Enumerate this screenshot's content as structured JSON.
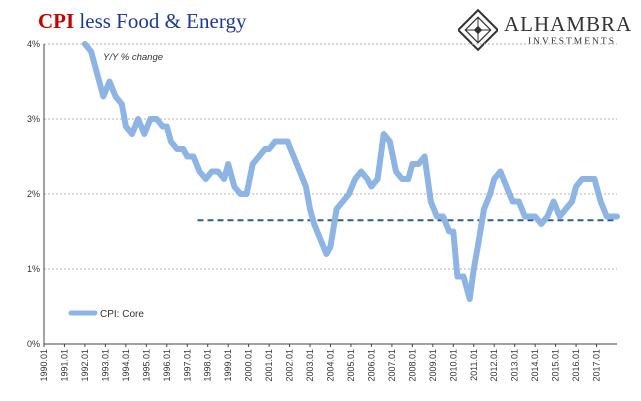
{
  "header": {
    "title_red": "CPI",
    "title_rest": " less Food & Energy",
    "logo_name": "ALHAMBRA",
    "logo_sub": "INVESTMENTS"
  },
  "chart_data": {
    "type": "line",
    "title": "CPI less Food & Energy",
    "annotation": "Y/Y % change",
    "ylim": [
      0,
      4
    ],
    "xlim": [
      1990.0,
      2018.0
    ],
    "yticks": [
      "0%",
      "1%",
      "2%",
      "3%",
      "4%"
    ],
    "xtick_labels": [
      "1990.01",
      "1991.01",
      "1992.01",
      "1993.01",
      "1994.01",
      "1995.01",
      "1996.01",
      "1997.01",
      "1998.01",
      "1999.01",
      "2000.01",
      "2001.01",
      "2002.01",
      "2003.01",
      "2004.01",
      "2005.01",
      "2006.01",
      "2007.01",
      "2008.01",
      "2009.01",
      "2010.01",
      "2011.01",
      "2012.01",
      "2013.01",
      "2014.01",
      "2015.01",
      "2016.01",
      "2017.01"
    ],
    "grid": true,
    "legend": "bottom-left",
    "colors": {
      "series": "#8eb4e3",
      "reference": "#2e5e86",
      "grid": "#b0b0b0"
    },
    "reference_line": {
      "y": 1.65,
      "x_start": 1997.5,
      "x_end": 2018.0
    },
    "series": [
      {
        "name": "CPI: Core",
        "x": [
          1992.0,
          1992.3,
          1992.6,
          1992.9,
          1993.2,
          1993.5,
          1993.8,
          1994.0,
          1994.3,
          1994.6,
          1994.9,
          1995.2,
          1995.5,
          1995.8,
          1996.0,
          1996.2,
          1996.5,
          1996.8,
          1997.0,
          1997.3,
          1997.6,
          1997.9,
          1998.2,
          1998.5,
          1998.8,
          1999.0,
          1999.3,
          1999.6,
          1999.9,
          2000.2,
          2000.5,
          2000.8,
          2001.0,
          2001.3,
          2001.6,
          2001.9,
          2002.2,
          2002.5,
          2002.8,
          2003.0,
          2003.2,
          2003.5,
          2003.8,
          2004.0,
          2004.3,
          2004.6,
          2004.9,
          2005.2,
          2005.5,
          2005.8,
          2006.0,
          2006.3,
          2006.6,
          2006.9,
          2007.2,
          2007.5,
          2007.8,
          2008.0,
          2008.3,
          2008.6,
          2008.9,
          2009.2,
          2009.5,
          2009.8,
          2010.0,
          2010.2,
          2010.5,
          2010.8,
          2011.0,
          2011.2,
          2011.5,
          2011.8,
          2012.0,
          2012.3,
          2012.6,
          2012.9,
          2013.2,
          2013.5,
          2013.8,
          2014.0,
          2014.3,
          2014.6,
          2014.9,
          2015.2,
          2015.5,
          2015.8,
          2016.0,
          2016.3,
          2016.6,
          2016.9,
          2017.2,
          2017.5,
          2017.8,
          2018.0
        ],
        "values": [
          4.0,
          3.9,
          3.6,
          3.3,
          3.5,
          3.3,
          3.2,
          2.9,
          2.8,
          3.0,
          2.8,
          3.0,
          3.0,
          2.9,
          2.9,
          2.7,
          2.6,
          2.6,
          2.5,
          2.5,
          2.3,
          2.2,
          2.3,
          2.3,
          2.2,
          2.4,
          2.1,
          2.0,
          2.0,
          2.4,
          2.5,
          2.6,
          2.6,
          2.7,
          2.7,
          2.7,
          2.5,
          2.3,
          2.1,
          1.8,
          1.6,
          1.4,
          1.2,
          1.3,
          1.8,
          1.9,
          2.0,
          2.2,
          2.3,
          2.2,
          2.1,
          2.2,
          2.8,
          2.7,
          2.3,
          2.2,
          2.2,
          2.4,
          2.4,
          2.5,
          1.9,
          1.7,
          1.7,
          1.5,
          1.5,
          0.9,
          0.9,
          0.6,
          1.0,
          1.3,
          1.8,
          2.0,
          2.2,
          2.3,
          2.1,
          1.9,
          1.9,
          1.7,
          1.7,
          1.7,
          1.6,
          1.7,
          1.9,
          1.7,
          1.8,
          1.9,
          2.1,
          2.2,
          2.2,
          2.2,
          1.9,
          1.7,
          1.7,
          1.7
        ]
      }
    ]
  }
}
